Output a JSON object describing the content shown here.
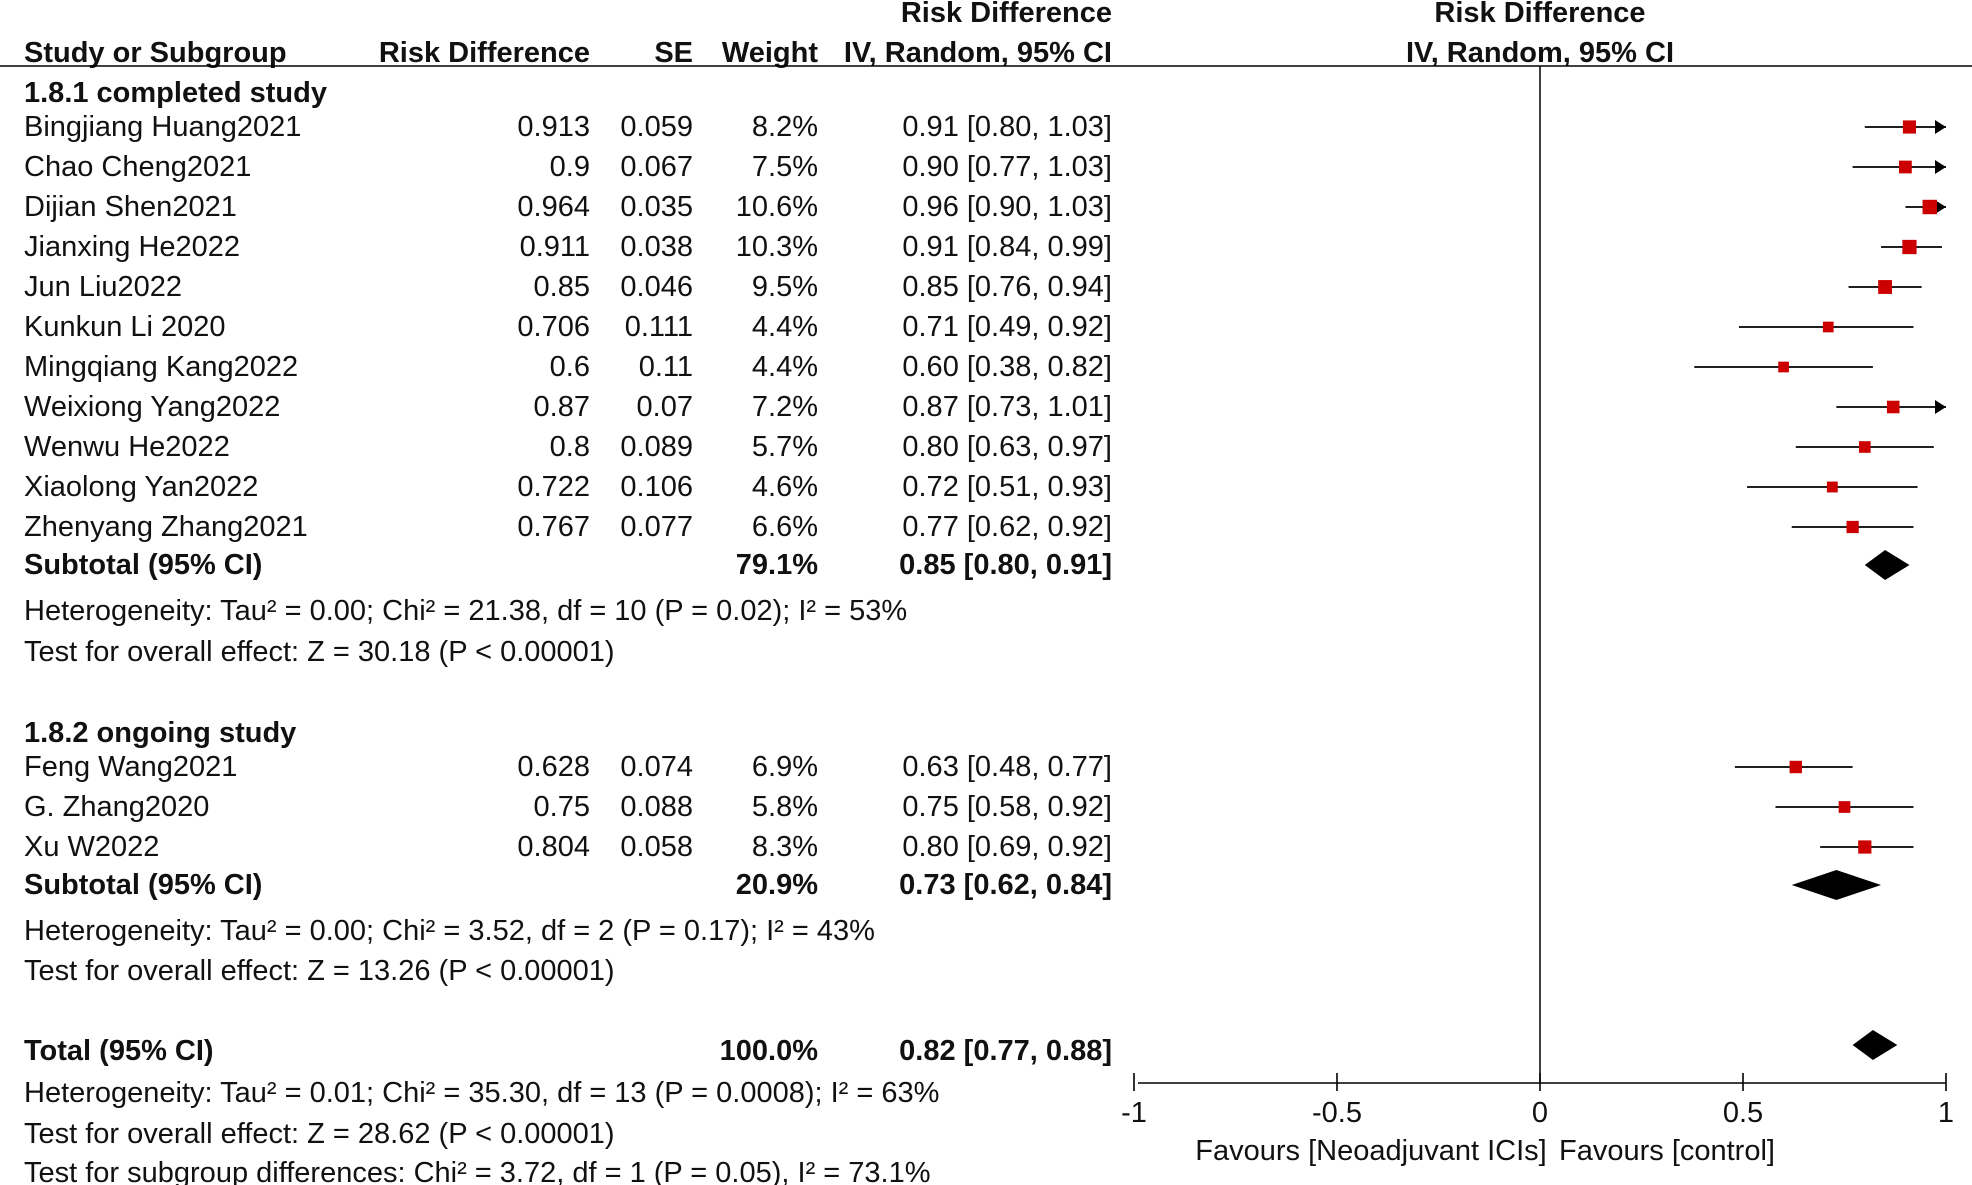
{
  "chart_data": {
    "type": "forest",
    "effect_measure": "Risk Difference",
    "method": "IV, Random, 95% CI",
    "headers": {
      "study": "Study or Subgroup",
      "estimate": "Risk Difference",
      "se": "SE",
      "weight": "Weight",
      "ci_group": "Risk Difference",
      "ci_sub": "IV, Random, 95% CI",
      "plot_group": "Risk Difference",
      "plot_sub": "IV, Random, 95% CI"
    },
    "xlim": [
      -1,
      1
    ],
    "x_ticks": [
      "-1",
      "-0.5",
      "0",
      "0.5",
      "1"
    ],
    "x_tick_values": [
      -1,
      -0.5,
      0,
      0.5,
      1
    ],
    "favours_left": "Favours [Neoadjuvant ICIs]",
    "favours_right": "Favours [control]",
    "groups": [
      {
        "title": "1.8.1 completed study",
        "studies": [
          {
            "name": "Bingjiang Huang2021",
            "est": "0.913",
            "se": "0.059",
            "weight": "8.2%",
            "ci": "0.91 [0.80, 1.03]",
            "pt": 0.91,
            "lo": 0.8,
            "hi": 1.03,
            "w": 8.2
          },
          {
            "name": "Chao Cheng2021",
            "est": "0.9",
            "se": "0.067",
            "weight": "7.5%",
            "ci": "0.90 [0.77, 1.03]",
            "pt": 0.9,
            "lo": 0.77,
            "hi": 1.03,
            "w": 7.5
          },
          {
            "name": "Dijian Shen2021",
            "est": "0.964",
            "se": "0.035",
            "weight": "10.6%",
            "ci": "0.96 [0.90, 1.03]",
            "pt": 0.96,
            "lo": 0.9,
            "hi": 1.03,
            "w": 10.6
          },
          {
            "name": "Jianxing He2022",
            "est": "0.911",
            "se": "0.038",
            "weight": "10.3%",
            "ci": "0.91 [0.84, 0.99]",
            "pt": 0.91,
            "lo": 0.84,
            "hi": 0.99,
            "w": 10.3
          },
          {
            "name": "Jun Liu2022",
            "est": "0.85",
            "se": "0.046",
            "weight": "9.5%",
            "ci": "0.85 [0.76, 0.94]",
            "pt": 0.85,
            "lo": 0.76,
            "hi": 0.94,
            "w": 9.5
          },
          {
            "name": "Kunkun Li 2020",
            "est": "0.706",
            "se": "0.111",
            "weight": "4.4%",
            "ci": "0.71 [0.49, 0.92]",
            "pt": 0.71,
            "lo": 0.49,
            "hi": 0.92,
            "w": 4.4
          },
          {
            "name": "Mingqiang Kang2022",
            "est": "0.6",
            "se": "0.11",
            "weight": "4.4%",
            "ci": "0.60 [0.38, 0.82]",
            "pt": 0.6,
            "lo": 0.38,
            "hi": 0.82,
            "w": 4.4
          },
          {
            "name": "Weixiong Yang2022",
            "est": "0.87",
            "se": "0.07",
            "weight": "7.2%",
            "ci": "0.87 [0.73, 1.01]",
            "pt": 0.87,
            "lo": 0.73,
            "hi": 1.01,
            "w": 7.2
          },
          {
            "name": "Wenwu He2022",
            "est": "0.8",
            "se": "0.089",
            "weight": "5.7%",
            "ci": "0.80 [0.63, 0.97]",
            "pt": 0.8,
            "lo": 0.63,
            "hi": 0.97,
            "w": 5.7
          },
          {
            "name": "Xiaolong Yan2022",
            "est": "0.722",
            "se": "0.106",
            "weight": "4.6%",
            "ci": "0.72 [0.51, 0.93]",
            "pt": 0.72,
            "lo": 0.51,
            "hi": 0.93,
            "w": 4.6
          },
          {
            "name": "Zhenyang Zhang2021",
            "est": "0.767",
            "se": "0.077",
            "weight": "6.6%",
            "ci": "0.77 [0.62, 0.92]",
            "pt": 0.77,
            "lo": 0.62,
            "hi": 0.92,
            "w": 6.6
          }
        ],
        "subtotal": {
          "label": "Subtotal (95% CI)",
          "weight": "79.1%",
          "ci": "0.85 [0.80, 0.91]",
          "pt": 0.85,
          "lo": 0.8,
          "hi": 0.91
        },
        "heterogeneity": "Heterogeneity: Tau² = 0.00; Chi² = 21.38, df = 10 (P = 0.02); I² = 53%",
        "overall_effect": "Test for overall effect: Z = 30.18 (P < 0.00001)"
      },
      {
        "title": "1.8.2 ongoing study",
        "studies": [
          {
            "name": "Feng Wang2021",
            "est": "0.628",
            "se": "0.074",
            "weight": "6.9%",
            "ci": "0.63 [0.48, 0.77]",
            "pt": 0.63,
            "lo": 0.48,
            "hi": 0.77,
            "w": 6.9
          },
          {
            "name": "G. Zhang2020",
            "est": "0.75",
            "se": "0.088",
            "weight": "5.8%",
            "ci": "0.75 [0.58, 0.92]",
            "pt": 0.75,
            "lo": 0.58,
            "hi": 0.92,
            "w": 5.8
          },
          {
            "name": "Xu W2022",
            "est": "0.804",
            "se": "0.058",
            "weight": "8.3%",
            "ci": "0.80 [0.69, 0.92]",
            "pt": 0.8,
            "lo": 0.69,
            "hi": 0.92,
            "w": 8.3
          }
        ],
        "subtotal": {
          "label": "Subtotal (95% CI)",
          "weight": "20.9%",
          "ci": "0.73 [0.62, 0.84]",
          "pt": 0.73,
          "lo": 0.62,
          "hi": 0.84
        },
        "heterogeneity": "Heterogeneity: Tau² = 0.00; Chi² = 3.52, df = 2 (P = 0.17); I² = 43%",
        "overall_effect": "Test for overall effect: Z = 13.26 (P < 0.00001)"
      }
    ],
    "total": {
      "label": "Total (95% CI)",
      "weight": "100.0%",
      "ci": "0.82 [0.77, 0.88]",
      "pt": 0.82,
      "lo": 0.77,
      "hi": 0.88
    },
    "total_heterogeneity": "Heterogeneity: Tau² = 0.01; Chi² = 35.30, df = 13 (P = 0.0008); I² = 63%",
    "total_overall_effect": "Test for overall effect: Z = 28.62 (P < 0.00001)",
    "subgroup_differences": "Test for subgroup differences: Chi² = 3.72, df = 1 (P = 0.05), I² = 73.1%",
    "colors": {
      "point": "#cc0000",
      "line": "#000000",
      "diamond": "#000000"
    }
  }
}
